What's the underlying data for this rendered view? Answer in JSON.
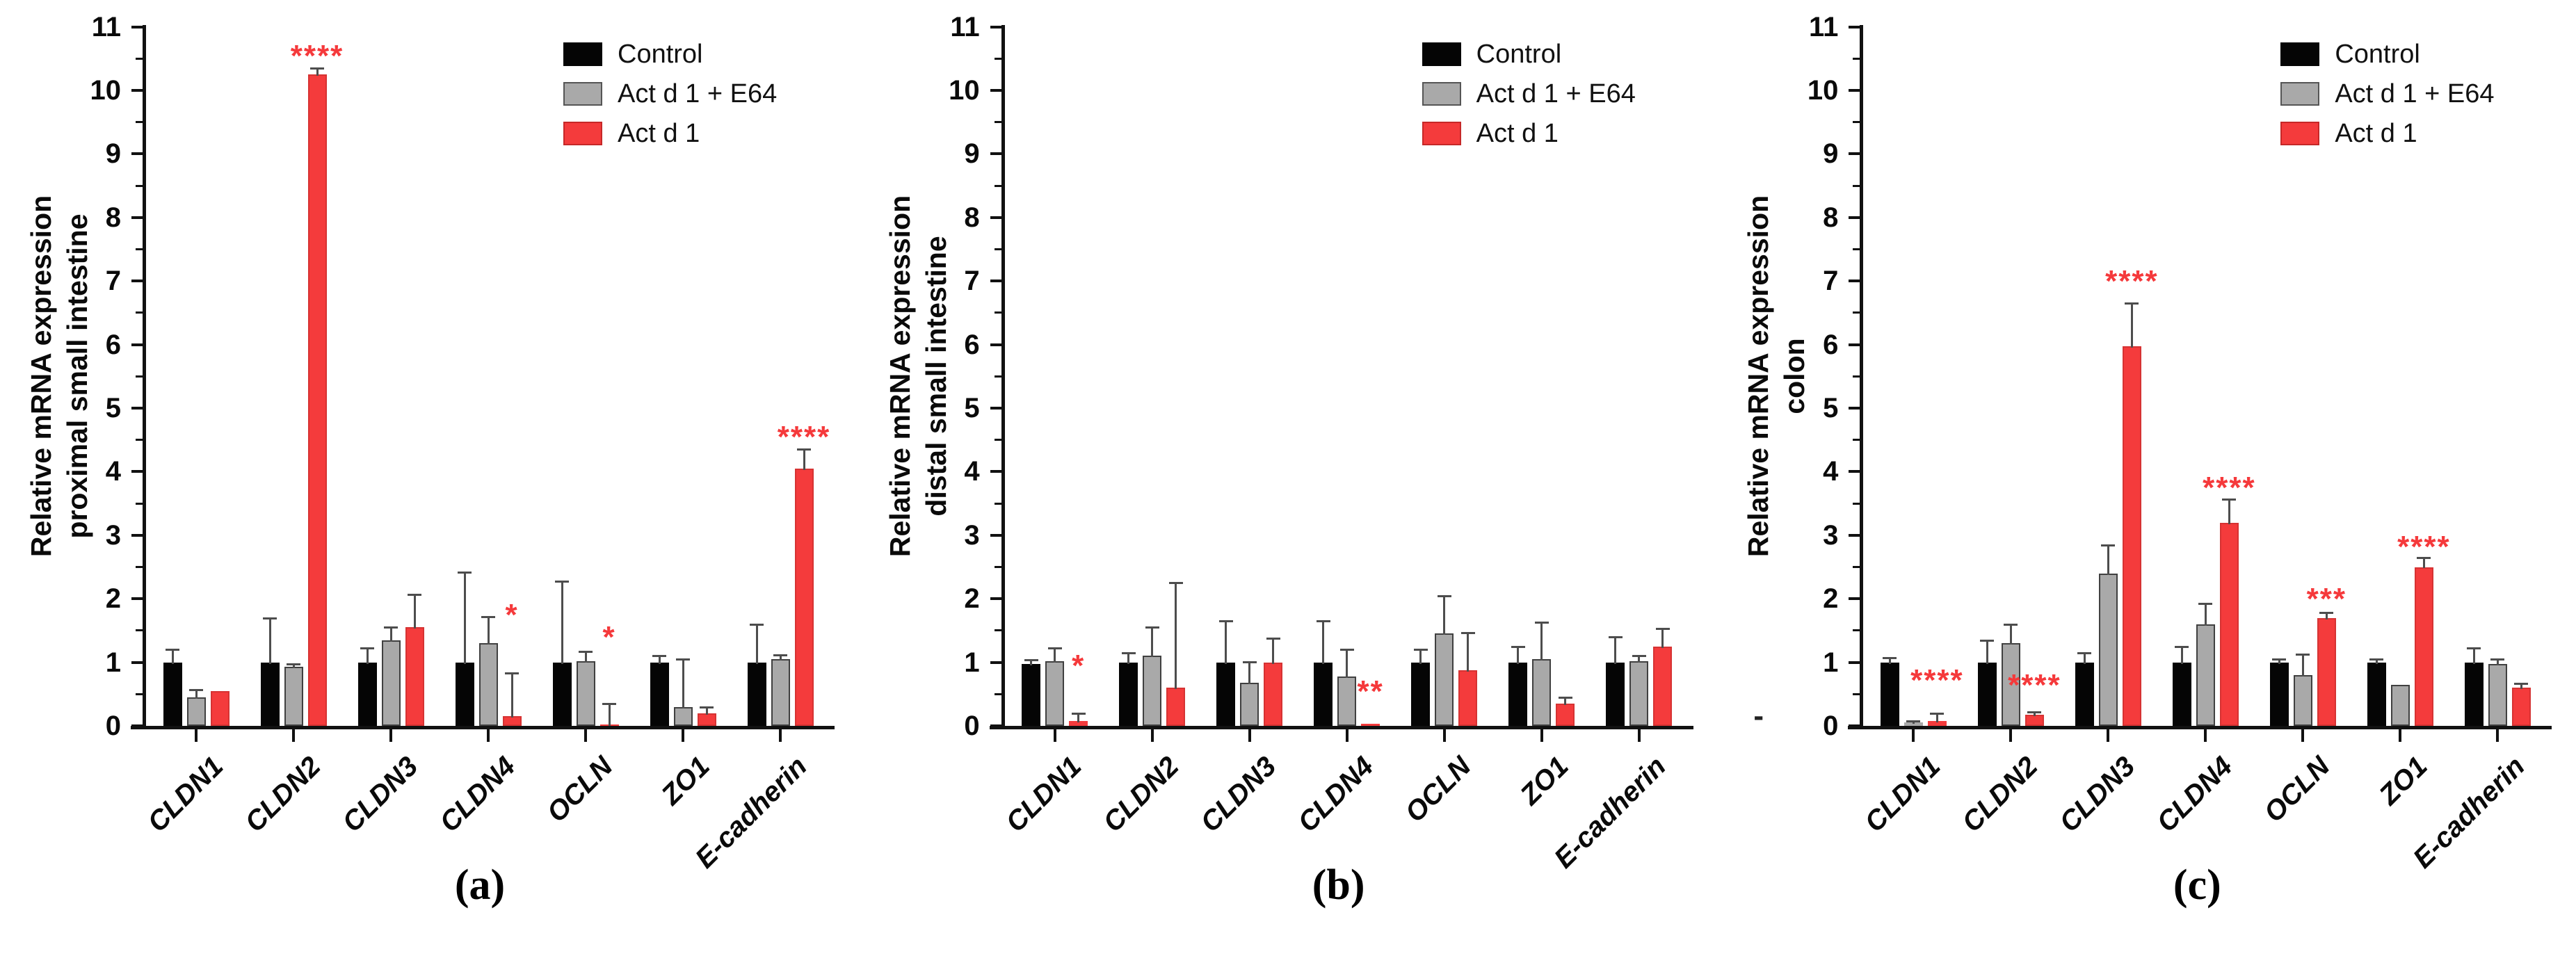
{
  "figure": {
    "background": "#ffffff",
    "colors": {
      "control": "#050505",
      "act_d1_e64": "#A9A9A9",
      "act_d1": "#F43B3C",
      "significance": "#F5393B",
      "error_bar": "#4D4D4D",
      "axis": "#111111"
    }
  },
  "chart_data": [
    {
      "type": "bar",
      "caption": "(a)",
      "ylabel_line1": "Relative mRNA expression",
      "ylabel_line2": "proximal small intestine",
      "ylim": [
        0,
        11
      ],
      "yticks": [
        0,
        1,
        2,
        3,
        4,
        5,
        6,
        7,
        8,
        9,
        10,
        11
      ],
      "grid": false,
      "legend_position": "top-right",
      "categories": [
        "CLDN1",
        "CLDN2",
        "CLDN3",
        "CLDN4",
        "OCLN",
        "ZO1",
        "E-cadherin"
      ],
      "series": [
        {
          "name": "Control",
          "color": "#050505",
          "values": [
            1.0,
            1.0,
            1.0,
            1.0,
            1.0,
            1.0,
            1.0
          ],
          "errors": [
            0.2,
            0.7,
            0.22,
            1.42,
            1.28,
            0.1,
            0.6
          ]
        },
        {
          "name": "Act d 1 + E64",
          "color": "#A9A9A9",
          "values": [
            0.45,
            0.93,
            1.35,
            1.3,
            1.02,
            0.3,
            1.05
          ],
          "errors": [
            0.12,
            0.04,
            0.2,
            0.42,
            0.15,
            0.75,
            0.07
          ]
        },
        {
          "name": "Act d 1",
          "color": "#F43B3C",
          "values": [
            0.55,
            10.25,
            1.55,
            0.15,
            0.02,
            0.2,
            4.05
          ],
          "errors": [
            0,
            0.1,
            0.52,
            0.68,
            0.33,
            0.1,
            0.3
          ]
        }
      ],
      "significance": [
        {
          "category_index": 1,
          "text": "****",
          "y": 10.45
        },
        {
          "category_index": 3,
          "text": "*",
          "y": 1.65
        },
        {
          "category_index": 4,
          "text": "*",
          "y": 1.3
        },
        {
          "category_index": 6,
          "text": "****",
          "y": 4.45
        }
      ]
    },
    {
      "type": "bar",
      "caption": "(b)",
      "ylabel_line1": "Relative mRNA expression",
      "ylabel_line2": "distal small intestine",
      "ylim": [
        0,
        11
      ],
      "yticks": [
        0,
        1,
        2,
        3,
        4,
        5,
        6,
        7,
        8,
        9,
        10,
        11
      ],
      "grid": false,
      "legend_position": "top-right",
      "categories": [
        "CLDN1",
        "CLDN2",
        "CLDN3",
        "CLDN4",
        "OCLN",
        "ZO1",
        "E-cadherin"
      ],
      "series": [
        {
          "name": "Control",
          "color": "#050505",
          "values": [
            0.97,
            1.0,
            1.0,
            1.0,
            1.0,
            1.0,
            1.0
          ],
          "errors": [
            0.07,
            0.15,
            0.65,
            0.65,
            0.2,
            0.25,
            0.4
          ]
        },
        {
          "name": "Act d 1 + E64",
          "color": "#A9A9A9",
          "values": [
            1.02,
            1.1,
            0.68,
            0.78,
            1.45,
            1.05,
            1.02
          ],
          "errors": [
            0.2,
            0.45,
            0.33,
            0.42,
            0.6,
            0.58,
            0.08
          ]
        },
        {
          "name": "Act d 1",
          "color": "#F43B3C",
          "values": [
            0.08,
            0.6,
            1.0,
            0.03,
            0.87,
            0.35,
            1.25
          ],
          "errors": [
            0.12,
            1.65,
            0.38,
            0,
            0.6,
            0.1,
            0.28
          ]
        }
      ],
      "significance": [
        {
          "category_index": 0,
          "text": "*",
          "y": 0.85
        },
        {
          "category_index": 3,
          "text": "**",
          "y": 0.45
        }
      ]
    },
    {
      "type": "bar",
      "caption": "(c)",
      "ylabel_line1": "Relative mRNA expression",
      "ylabel_line2": "colon",
      "ylim": [
        0,
        11
      ],
      "yticks": [
        0,
        1,
        2,
        3,
        4,
        5,
        6,
        7,
        8,
        9,
        10,
        11
      ],
      "grid": false,
      "legend_position": "top-right",
      "stray_mark": "-",
      "categories": [
        "CLDN1",
        "CLDN2",
        "CLDN3",
        "CLDN4",
        "OCLN",
        "ZO1",
        "E-cadherin"
      ],
      "series": [
        {
          "name": "Control",
          "color": "#050505",
          "values": [
            1.0,
            1.0,
            1.0,
            1.0,
            1.0,
            1.0,
            1.0
          ],
          "errors": [
            0.07,
            0.35,
            0.15,
            0.25,
            0.05,
            0.05,
            0.22
          ]
        },
        {
          "name": "Act d 1 + E64",
          "color": "#A9A9A9",
          "values": [
            0.05,
            1.3,
            2.4,
            1.6,
            0.8,
            0.65,
            0.97
          ],
          "errors": [
            0.03,
            0.3,
            0.45,
            0.33,
            0.33,
            0,
            0.08
          ]
        },
        {
          "name": "Act d 1",
          "color": "#F43B3C",
          "values": [
            0.08,
            0.17,
            5.97,
            3.2,
            1.7,
            2.5,
            0.6
          ],
          "errors": [
            0.12,
            0.05,
            0.68,
            0.37,
            0.08,
            0.15,
            0.07
          ]
        }
      ],
      "significance": [
        {
          "category_index": 0,
          "text": "****",
          "y": 0.62
        },
        {
          "category_index": 1,
          "text": "****",
          "y": 0.55
        },
        {
          "category_index": 2,
          "text": "****",
          "y": 6.9
        },
        {
          "category_index": 3,
          "text": "****",
          "y": 3.65
        },
        {
          "category_index": 4,
          "text": "***",
          "y": 1.9
        },
        {
          "category_index": 5,
          "text": "****",
          "y": 2.72
        }
      ]
    }
  ]
}
